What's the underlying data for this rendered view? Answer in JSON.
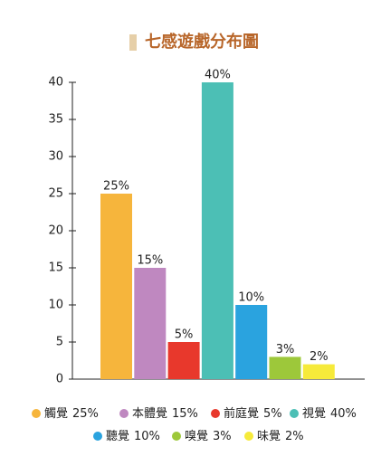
{
  "chart_data": {
    "type": "bar",
    "title": "七感遊戲分布圖",
    "categories": [
      "觸覺",
      "本體覺",
      "前庭覺",
      "視覺",
      "聽覺",
      "嗅覺",
      "味覺"
    ],
    "values": [
      25,
      15,
      5,
      40,
      10,
      3,
      2
    ],
    "value_labels": [
      "25%",
      "15%",
      "5%",
      "40%",
      "10%",
      "3%",
      "2%"
    ],
    "colors": [
      "#f6b53c",
      "#bf88c0",
      "#e8382c",
      "#4cbfb5",
      "#2aa3df",
      "#9dc83a",
      "#f6ea3a"
    ],
    "ylim": [
      0,
      40
    ],
    "yticks": [
      0,
      5,
      10,
      15,
      20,
      25,
      30,
      35,
      40
    ],
    "grid": false
  }
}
